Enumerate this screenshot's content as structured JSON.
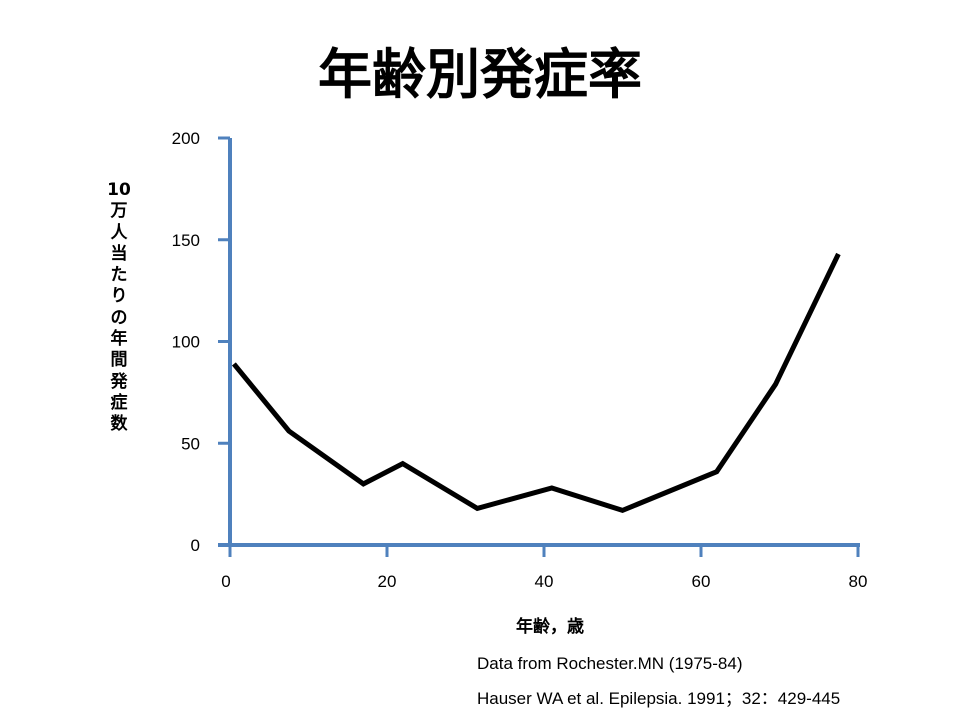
{
  "slide": {
    "title": "年齢別発症率",
    "citation_1": "Data from Rochester.MN (1975-84)",
    "citation_2": "Hauser WA et al. Epilepsia. 1991；32：429-445"
  },
  "colors": {
    "axis": "#4f81bd",
    "line": "#000000"
  },
  "chart_data": {
    "type": "line",
    "title": "年齢別発症率",
    "xlabel": "年齢，歳",
    "ylabel": "10\n万\n人\n当\nた\nり\nの\n年\n間\n発\n症\n数",
    "xlim": [
      0,
      80
    ],
    "ylim": [
      0,
      200
    ],
    "xticks": [
      0,
      20,
      40,
      60,
      80
    ],
    "yticks": [
      0,
      50,
      100,
      150,
      200
    ],
    "xtick_labels": [
      "0",
      "20",
      "40",
      "60",
      "80"
    ],
    "ytick_labels": [
      "0",
      "50",
      "100",
      "150",
      "200"
    ],
    "grid": false,
    "legend": "none",
    "series": [
      {
        "x": [
          0.5,
          7.5,
          17,
          22,
          31.5,
          41,
          50,
          62,
          69.5,
          77.5
        ],
        "y": [
          89,
          56,
          30,
          40,
          18,
          28,
          17,
          36,
          79,
          143
        ]
      }
    ]
  }
}
